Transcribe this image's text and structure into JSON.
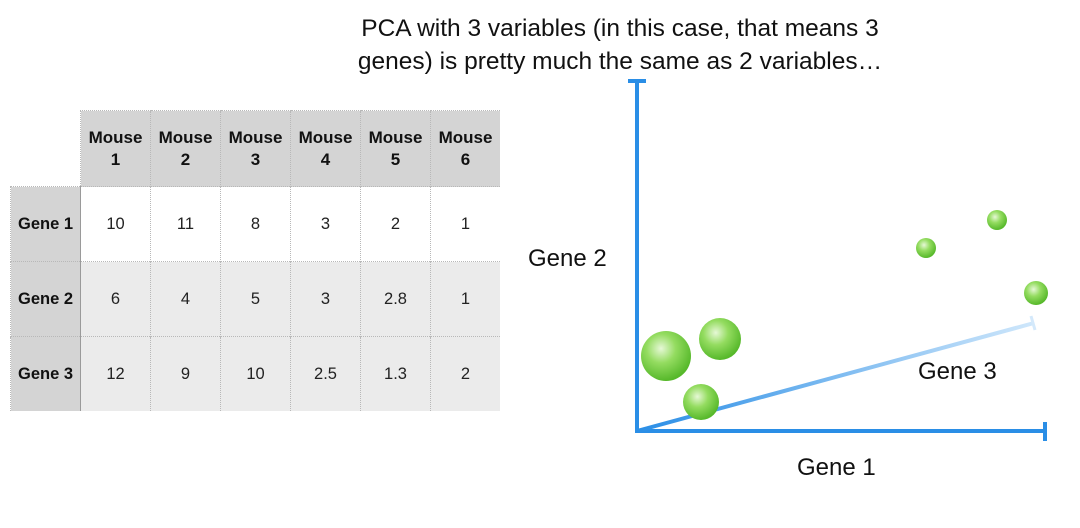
{
  "title": {
    "line1": "PCA with 3 variables (in this case, that means 3",
    "line2": "genes) is pretty much the same as 2 variables…"
  },
  "table": {
    "columns": [
      {
        "line1": "Mouse",
        "line2": "1"
      },
      {
        "line1": "Mouse",
        "line2": "2"
      },
      {
        "line1": "Mouse",
        "line2": "3"
      },
      {
        "line1": "Mouse",
        "line2": "4"
      },
      {
        "line1": "Mouse",
        "line2": "5"
      },
      {
        "line1": "Mouse",
        "line2": "6"
      }
    ],
    "rows": [
      {
        "label": "Gene 1",
        "values": [
          "10",
          "11",
          "8",
          "3",
          "2",
          "1"
        ]
      },
      {
        "label": "Gene 2",
        "values": [
          "6",
          "4",
          "5",
          "3",
          "2.8",
          "1"
        ]
      },
      {
        "label": "Gene 3",
        "values": [
          "12",
          "9",
          "10",
          "2.5",
          "1.3",
          "2"
        ]
      }
    ]
  },
  "plot": {
    "x_axis_label": "Gene 1",
    "y_axis_label": "Gene 2",
    "z_axis_label": "Gene 3",
    "axis_color": "#2a8ee6",
    "point_color": "#7cd64a"
  }
}
